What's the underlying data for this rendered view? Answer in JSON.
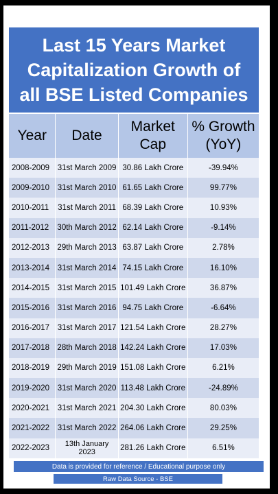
{
  "title": {
    "line1": "Last 15 Years Market",
    "line2": "Capitalization Growth of",
    "line3": "all BSE Listed Companies"
  },
  "headers": {
    "year": "Year",
    "date": "Date",
    "mcap_line1": "Market",
    "mcap_line2": "Cap",
    "growth_line1": "% Growth",
    "growth_line2": "(YoY)"
  },
  "rows": [
    {
      "year": "2008-2009",
      "date": "31st March 2009",
      "mcap": "30.86 Lakh Crore",
      "growth": "-39.94%"
    },
    {
      "year": "2009-2010",
      "date": "31st March 2010",
      "mcap": "61.65 Lakh Crore",
      "growth": "99.77%"
    },
    {
      "year": "2010-2011",
      "date": "31st March 2011",
      "mcap": "68.39 Lakh Crore",
      "growth": "10.93%"
    },
    {
      "year": "2011-2012",
      "date": "30th March 2012",
      "mcap": "62.14 Lakh Crore",
      "growth": "-9.14%"
    },
    {
      "year": "2012-2013",
      "date": "29th March 2013",
      "mcap": "63.87 Lakh Crore",
      "growth": "2.78%"
    },
    {
      "year": "2013-2014",
      "date": "31st March 2014",
      "mcap": "74.15 Lakh Crore",
      "growth": "16.10%"
    },
    {
      "year": "2014-2015",
      "date": "31st March 2015",
      "mcap": "101.49 Lakh Crore",
      "growth": "36.87%"
    },
    {
      "year": "2015-2016",
      "date": "31st March 2016",
      "mcap": "94.75 Lakh Crore",
      "growth": "-6.64%"
    },
    {
      "year": "2016-2017",
      "date": "31st March 2017",
      "mcap": "121.54 Lakh Crore",
      "growth": "28.27%"
    },
    {
      "year": "2017-2018",
      "date": "28th March 2018",
      "mcap": "142.24 Lakh Crore",
      "growth": "17.03%"
    },
    {
      "year": "2018-2019",
      "date": "29th March 2019",
      "mcap": "151.08 Lakh Crore",
      "growth": "6.21%"
    },
    {
      "year": "2019-2020",
      "date": "31st March 2020",
      "mcap": "113.48 Lakh Crore",
      "growth": "-24.89%"
    },
    {
      "year": "2020-2021",
      "date": "31st March 2021",
      "mcap": "204.30 Lakh Crore",
      "growth": "80.03%"
    },
    {
      "year": "2021-2022",
      "date": "31st March 2022",
      "mcap": "264.06 Lakh Crore",
      "growth": "29.25%"
    },
    {
      "year": "2022-2023",
      "date": "13th January 2023",
      "mcap": "281.26 Lakh Crore",
      "growth": "6.51%"
    }
  ],
  "footer": {
    "note": "Data is provided for reference / Educational purpose only",
    "source": "Raw Data Source - BSE"
  }
}
